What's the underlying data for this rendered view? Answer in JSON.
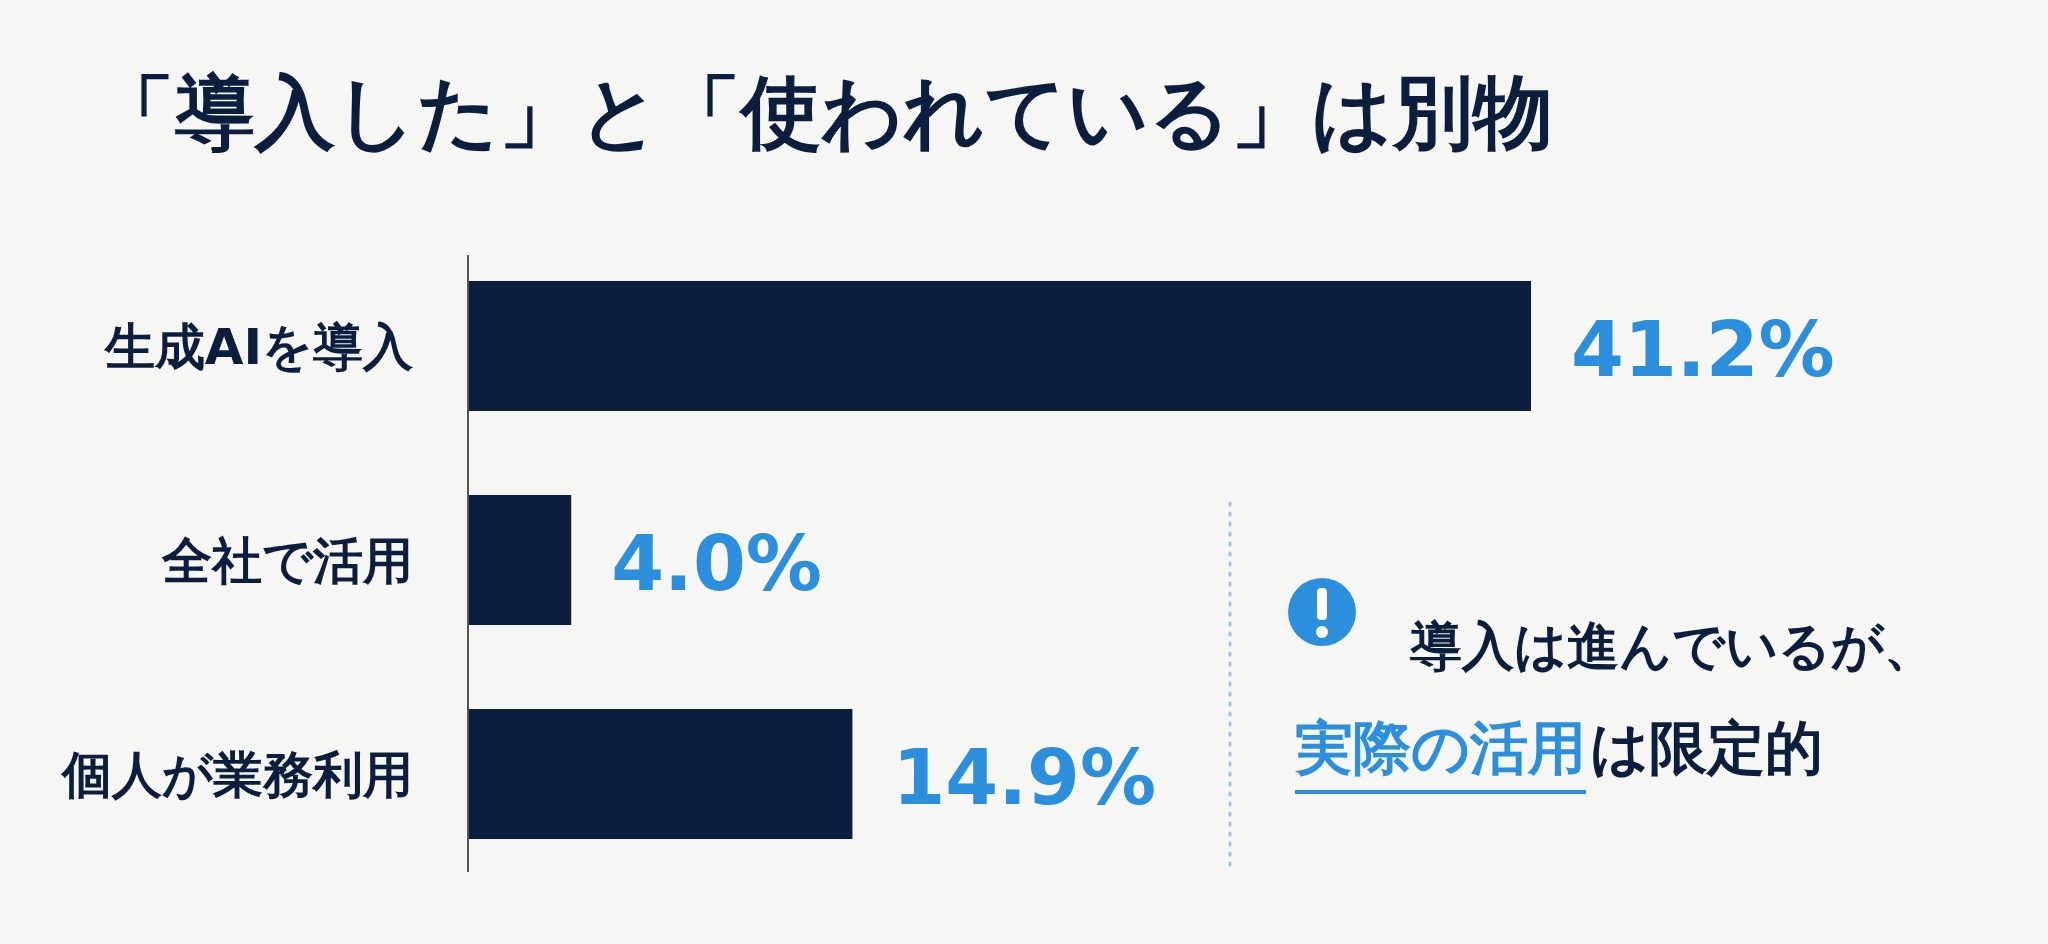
{
  "chart_data": {
    "type": "bar",
    "orientation": "horizontal",
    "title": "「導入した」と「使われている」は別物",
    "categories": [
      "生成AIを導入",
      "全社で活用",
      "個人が業務利用"
    ],
    "values": [
      41.2,
      4.0,
      14.9
    ],
    "value_labels": [
      "41.2%",
      "4.0%",
      "14.9%"
    ],
    "color": "#0b1e3d",
    "annotations": [
      "導入は進んでいるが、",
      "実際の活用",
      "は限定的"
    ]
  }
}
